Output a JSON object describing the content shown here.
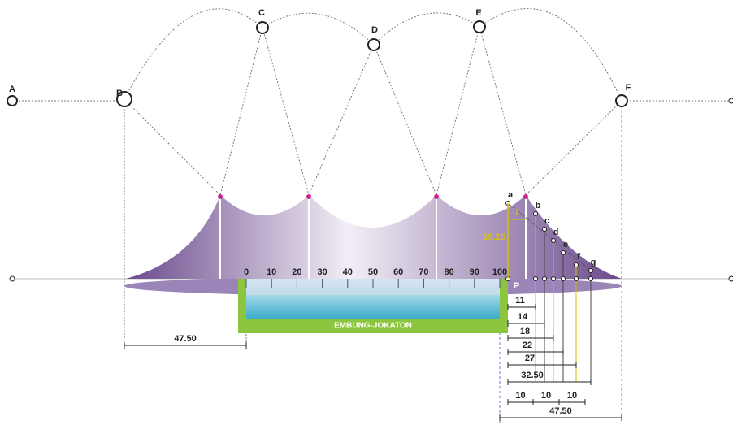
{
  "nodes": [
    {
      "label": "A"
    },
    {
      "label": "B"
    },
    {
      "label": "C"
    },
    {
      "label": "D"
    },
    {
      "label": "E"
    },
    {
      "label": "F"
    }
  ],
  "scale": [
    "0",
    "10",
    "20",
    "30",
    "40",
    "50",
    "60",
    "70",
    "80",
    "90",
    "100"
  ],
  "sub_points": [
    "a",
    "b",
    "c",
    "d",
    "e",
    "f",
    "g"
  ],
  "p_label": "P",
  "pond_label": "EMBUNG-JOKATON",
  "dimensions": {
    "left": "47.50",
    "height": "18.25",
    "offset": "7",
    "right_stack": [
      "11",
      "14",
      "18",
      "22",
      "27",
      "32.50"
    ],
    "spacing": [
      "10",
      "10",
      "10"
    ],
    "bottom": "47.50"
  }
}
